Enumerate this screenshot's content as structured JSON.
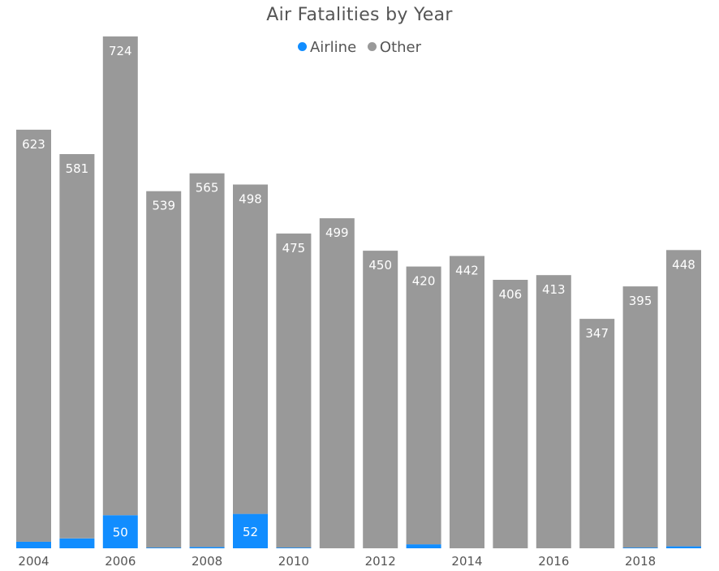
{
  "chart_data": {
    "type": "bar",
    "stacked": true,
    "title": "Air Fatalities by Year",
    "categories": [
      "2004",
      "2005",
      "2006",
      "2007",
      "2008",
      "2009",
      "2010",
      "2011",
      "2012",
      "2013",
      "2014",
      "2015",
      "2016",
      "2017",
      "2018",
      "2019"
    ],
    "tick_labels": [
      "2004",
      "",
      "2006",
      "",
      "2008",
      "",
      "2010",
      "",
      "2012",
      "",
      "2014",
      "",
      "2016",
      "",
      "2018",
      ""
    ],
    "series": [
      {
        "name": "Airline",
        "color": "#118DFF",
        "values": [
          10,
          15,
          50,
          1,
          2,
          52,
          1,
          0,
          0,
          6,
          0,
          0,
          0,
          0,
          1,
          3
        ],
        "labels": [
          "",
          "",
          "50",
          "",
          "",
          "52",
          "",
          "",
          "",
          "",
          "",
          "",
          "",
          "",
          "",
          ""
        ]
      },
      {
        "name": "Other",
        "color": "#999999",
        "values": [
          623,
          581,
          724,
          539,
          565,
          498,
          475,
          499,
          450,
          420,
          442,
          406,
          413,
          347,
          395,
          448
        ],
        "labels": [
          "623",
          "581",
          "724",
          "539",
          "565",
          "498",
          "475",
          "499",
          "450",
          "420",
          "442",
          "406",
          "413",
          "347",
          "395",
          "448"
        ]
      }
    ],
    "ylim": [
      0,
      780
    ],
    "grid": false,
    "legend_position": "top-center"
  }
}
